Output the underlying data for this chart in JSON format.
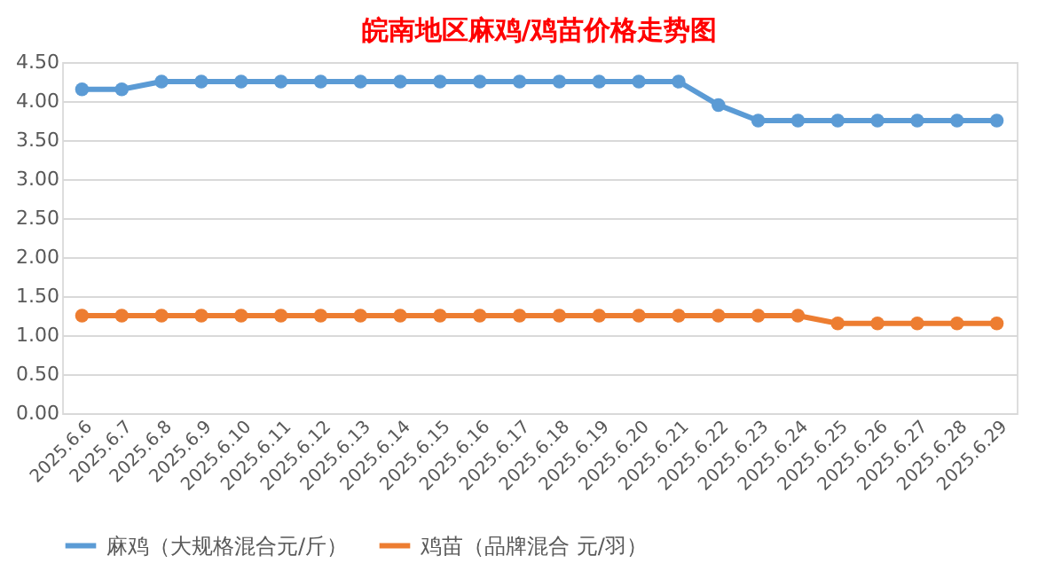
{
  "chart_data": {
    "type": "line",
    "title": "皖南地区麻鸡/鸡苗价格走势图",
    "categories": [
      "2025.6.6",
      "2025.6.7",
      "2025.6.8",
      "2025.6.9",
      "2025.6.10",
      "2025.6.11",
      "2025.6.12",
      "2025.6.13",
      "2025.6.14",
      "2025.6.15",
      "2025.6.16",
      "2025.6.17",
      "2025.6.18",
      "2025.6.19",
      "2025.6.20",
      "2025.6.21",
      "2025.6.22",
      "2025.6.23",
      "2025.6.24",
      "2025.6.25",
      "2025.6.26",
      "2025.6.27",
      "2025.6.28",
      "2025.6.29"
    ],
    "series": [
      {
        "name": "麻鸡（大规格混合元/斤）",
        "color": "#5b9bd5",
        "values": [
          4.15,
          4.15,
          4.25,
          4.25,
          4.25,
          4.25,
          4.25,
          4.25,
          4.25,
          4.25,
          4.25,
          4.25,
          4.25,
          4.25,
          4.25,
          4.25,
          3.95,
          3.75,
          3.75,
          3.75,
          3.75,
          3.75,
          3.75,
          3.75
        ]
      },
      {
        "name": "鸡苗（品牌混合 元/羽）",
        "color": "#ed7d31",
        "values": [
          1.25,
          1.25,
          1.25,
          1.25,
          1.25,
          1.25,
          1.25,
          1.25,
          1.25,
          1.25,
          1.25,
          1.25,
          1.25,
          1.25,
          1.25,
          1.25,
          1.25,
          1.25,
          1.25,
          1.15,
          1.15,
          1.15,
          1.15,
          1.15
        ]
      }
    ],
    "ylim": [
      0,
      4.5
    ],
    "yticks": [
      {
        "value": 0,
        "label": "0.00"
      },
      {
        "value": 0.5,
        "label": "0.50"
      },
      {
        "value": 1,
        "label": "1.00"
      },
      {
        "value": 1.5,
        "label": "1.50"
      },
      {
        "value": 2,
        "label": "2.00"
      },
      {
        "value": 2.5,
        "label": "2.50"
      },
      {
        "value": 3,
        "label": "3.00"
      },
      {
        "value": 3.5,
        "label": "3.50"
      },
      {
        "value": 4,
        "label": "4.00"
      },
      {
        "value": 4.5,
        "label": "4.50"
      }
    ],
    "grid": "y",
    "legend": "bottom",
    "marker": "circle",
    "line_style": "solid"
  }
}
